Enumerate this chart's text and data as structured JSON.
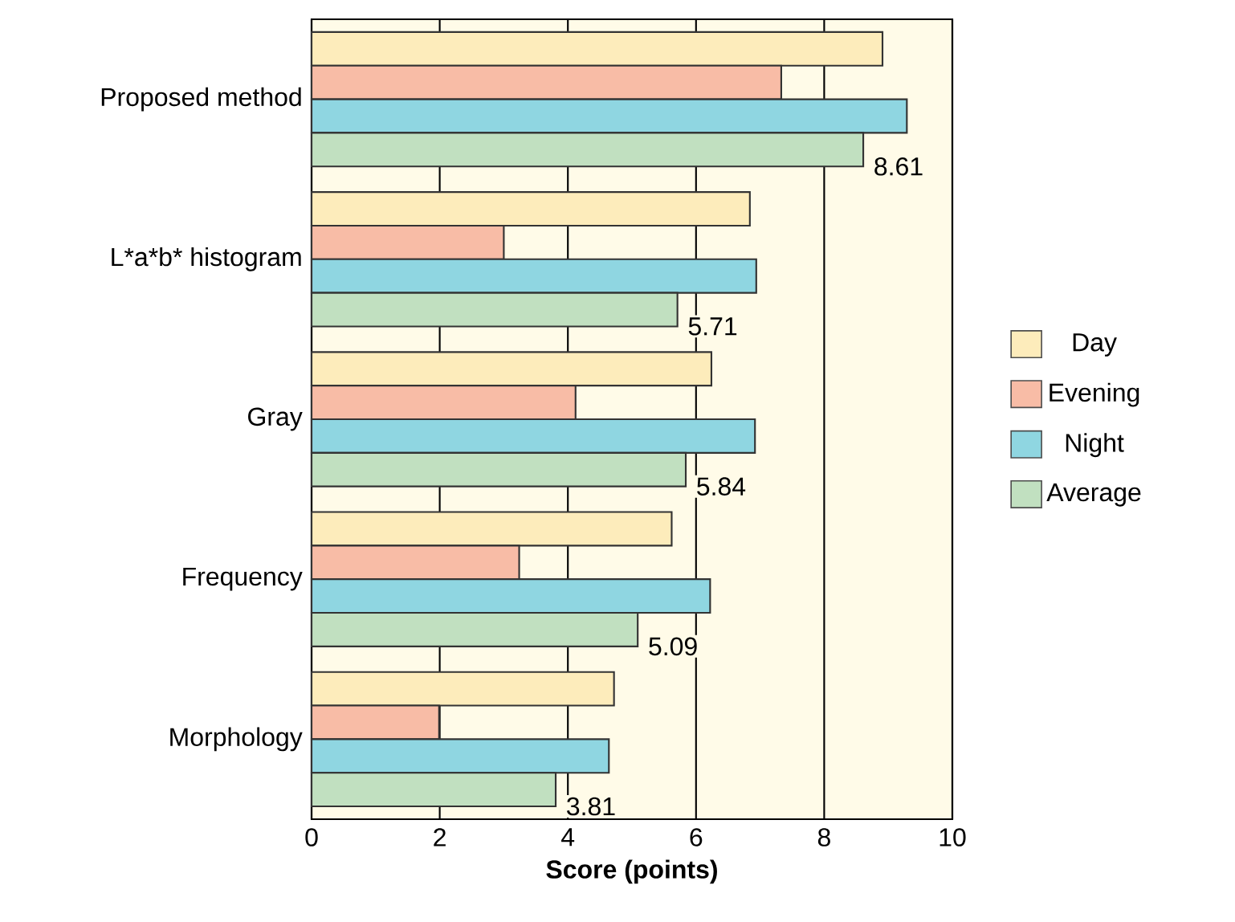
{
  "chart_data": {
    "type": "bar",
    "orientation": "horizontal",
    "xlabel": "Score (points)",
    "categories": [
      "Proposed method",
      "L*a*b* histogram",
      "Gray",
      "Frequency",
      "Morphology"
    ],
    "series": [
      {
        "name": "Day",
        "color": "#fdecbb",
        "values": [
          8.91,
          6.84,
          6.24,
          5.62,
          4.72
        ]
      },
      {
        "name": "Evening",
        "color": "#f8bca6",
        "values": [
          7.33,
          3.0,
          4.12,
          3.24,
          1.99
        ]
      },
      {
        "name": "Night",
        "color": "#8fd6e1",
        "values": [
          9.29,
          6.94,
          6.92,
          6.22,
          4.64
        ]
      },
      {
        "name": "Average",
        "color": "#c1e0c0",
        "values": [
          8.61,
          5.71,
          5.84,
          5.09,
          3.81
        ],
        "value_labels": [
          "8.61",
          "5.71",
          "5.84",
          "5.09",
          "3.81"
        ]
      }
    ],
    "xlim": [
      0,
      10
    ],
    "xticks": [
      0,
      2,
      4,
      6,
      8,
      10
    ],
    "grid": "x",
    "legend": "right"
  }
}
